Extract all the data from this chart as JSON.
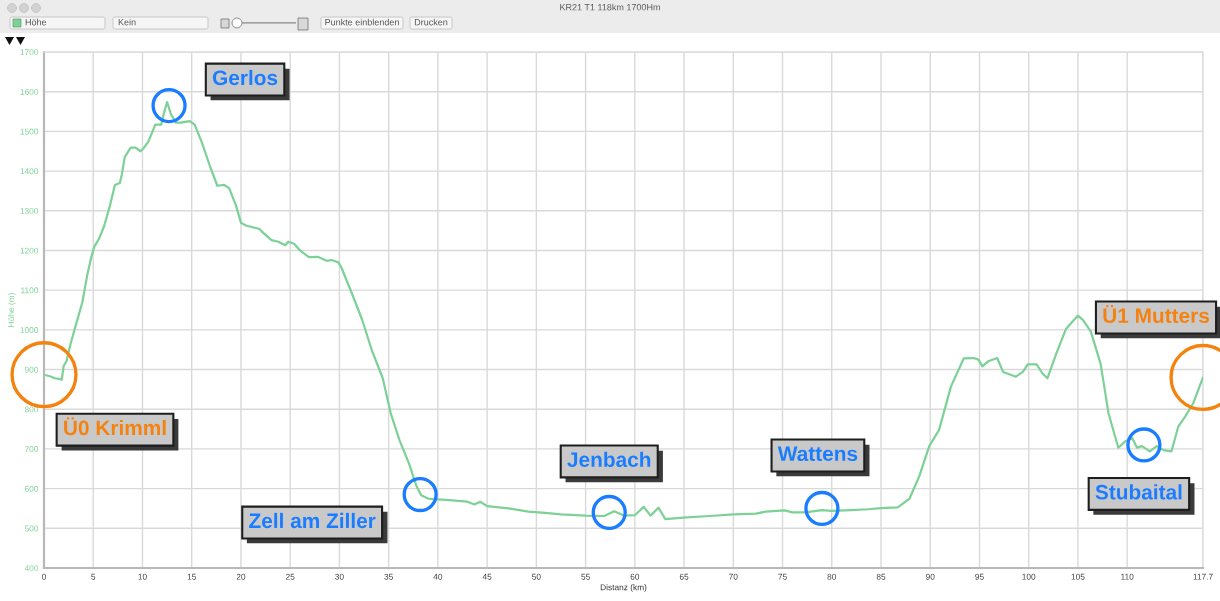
{
  "chart_data": {
    "type": "line",
    "title": "KR21 T1 118km 1700Hm",
    "xlabel": "Distanz (km)",
    "ylabel": "Höhe (m)",
    "x": [
      0,
      0.6,
      1.1,
      1.7,
      1.8,
      2.0,
      2.3,
      2.7,
      3.2,
      3.9,
      4.4,
      4.8,
      5.1,
      5.6,
      6.1,
      6.7,
      7.2,
      7.7,
      7.9,
      8.2,
      8.8,
      9.3,
      9.8,
      10.1,
      10.6,
      11.3,
      11.9,
      12.2,
      12.5,
      12.9,
      13.4,
      13.9,
      14.8,
      15.3,
      16.0,
      16.9,
      17.6,
      18.3,
      18.8,
      19.5,
      20.0,
      20.5,
      21.9,
      22.1,
      23.1,
      23.8,
      24.5,
      24.8,
      25.4,
      26.0,
      26.9,
      27.8,
      28.7,
      29.2,
      29.9,
      30.2,
      31.2,
      32.3,
      33.3,
      34.4,
      35.2,
      36.1,
      37.1,
      37.8,
      38.3,
      39.0,
      40.0,
      41.2,
      42.0,
      43.0,
      43.7,
      44.3,
      45.0,
      47.2,
      49.2,
      50.9,
      52.5,
      55.0,
      56.9,
      57.9,
      58.9,
      60.0,
      60.9,
      61.6,
      62.4,
      63.1,
      64.9,
      67.6,
      70.0,
      72.3,
      73.3,
      75.2,
      76.0,
      77.3,
      79.0,
      80.0,
      82.0,
      83.7,
      85.0,
      86.7,
      87.9,
      88.9,
      89.9,
      90.9,
      92.1,
      93.4,
      94.4,
      94.9,
      95.3,
      95.9,
      96.8,
      97.4,
      98.7,
      99.4,
      99.9,
      100.8,
      101.4,
      101.9,
      102.8,
      103.8,
      105.0,
      105.5,
      106.3,
      107.3,
      108.1,
      109.1,
      109.8,
      110.5,
      111.0,
      111.5,
      112.3,
      113.0,
      113.7,
      114.5,
      115.2,
      115.8,
      116.7,
      117.7
    ],
    "series": [
      {
        "color": "#7dd197",
        "values": [
          887,
          883,
          878,
          876,
          874,
          909,
          922,
          965,
          1009,
          1070,
          1139,
          1183,
          1209,
          1230,
          1261,
          1313,
          1365,
          1370,
          1391,
          1435,
          1459,
          1459,
          1450,
          1457,
          1474,
          1517,
          1517,
          1548,
          1574,
          1543,
          1522,
          1522,
          1526,
          1517,
          1474,
          1409,
          1363,
          1365,
          1357,
          1313,
          1270,
          1263,
          1254,
          1248,
          1226,
          1222,
          1213,
          1222,
          1217,
          1200,
          1183,
          1184,
          1174,
          1176,
          1170,
          1157,
          1096,
          1026,
          948,
          878,
          791,
          722,
          661,
          608,
          583,
          575,
          573,
          571,
          569,
          567,
          560,
          567,
          556,
          550,
          542,
          539,
          535,
          532,
          531,
          543,
          532,
          533,
          554,
          532,
          552,
          523,
          527,
          531,
          535,
          537,
          542,
          545,
          540,
          540,
          546,
          544,
          546,
          548,
          551,
          553,
          575,
          632,
          707,
          748,
          857,
          928,
          929,
          925,
          908,
          921,
          929,
          894,
          882,
          894,
          913,
          913,
          890,
          878,
          940,
          1003,
          1036,
          1025,
          996,
          915,
          790,
          703,
          719,
          728,
          703,
          707,
          694,
          707,
          697,
          694,
          757,
          778,
          815,
          880
        ]
      }
    ],
    "xlim": [
      0,
      117.7
    ],
    "ylim": [
      400,
      1700
    ],
    "xticks": [
      0,
      5,
      10,
      15,
      20,
      25,
      30,
      35,
      40,
      45,
      50,
      55,
      60,
      65,
      70,
      75,
      80,
      85,
      90,
      95,
      100,
      105,
      110,
      117.7
    ],
    "yticks": [
      400,
      500,
      600,
      700,
      800,
      900,
      1000,
      1100,
      1200,
      1300,
      1400,
      1500,
      1600,
      1700
    ],
    "grid": true,
    "annotations": [
      "Höhe",
      "Kein",
      "Punkte einblenden",
      "Drucken",
      {
        "text": "Ü0 Krimml",
        "x": 0,
        "y": 887
      },
      {
        "text": "Gerlos",
        "x": 12.7,
        "y": 1565
      },
      {
        "text": "Zell am Ziller",
        "x": 38.2,
        "y": 585
      },
      {
        "text": "Jenbach",
        "x": 57.4,
        "y": 540
      },
      {
        "text": "Wattens",
        "x": 79,
        "y": 550
      },
      {
        "text": "Stubaital",
        "x": 111.7,
        "y": 710
      },
      {
        "text": "Ü1 Mutters",
        "x": 117.7,
        "y": 880
      }
    ]
  }
}
